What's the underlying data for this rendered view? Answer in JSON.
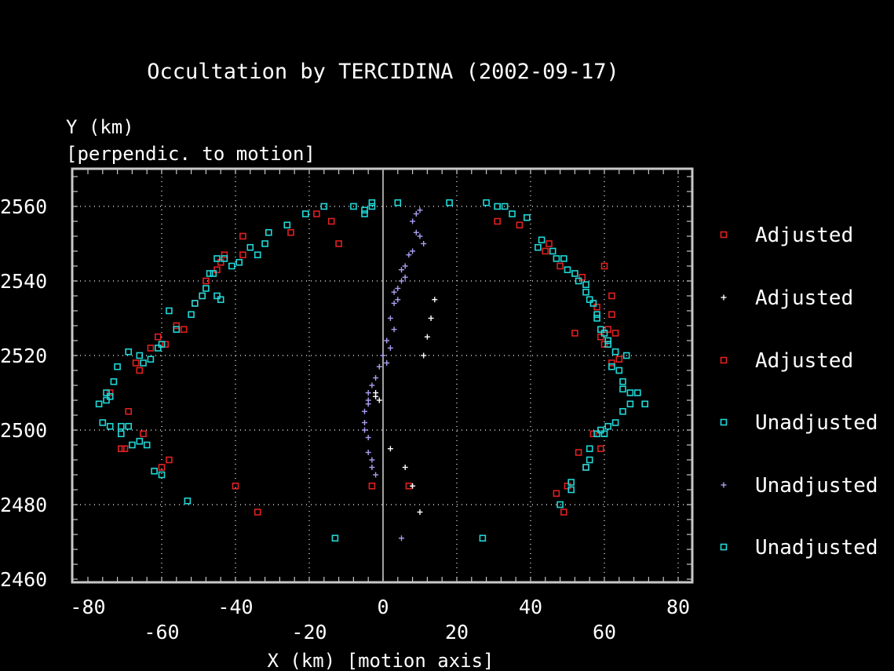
{
  "chart_data": {
    "type": "scatter",
    "title": "Occultation by TERCIDINA (2002-09-17)",
    "ylabel_line1": "Y (km)",
    "ylabel_line2": "[perpendic. to motion]",
    "xlabel": "X (km) [motion axis]",
    "xlim": [
      -84,
      84
    ],
    "ylim": [
      2460,
      2570
    ],
    "x_ticks_major": [
      -80,
      -40,
      0,
      40,
      80
    ],
    "x_ticks_minor": [
      -60,
      -20,
      20,
      60
    ],
    "x_grid": [
      -60,
      -40,
      -20,
      20,
      40,
      60,
      80
    ],
    "y_ticks": [
      2460,
      2480,
      2500,
      2520,
      2540,
      2560
    ],
    "y_grid": [
      2480,
      2500,
      2520,
      2540,
      2560
    ],
    "grid": true,
    "vertical_reference_x": 0,
    "legend_position": "right",
    "colors": {
      "background": "#000000",
      "frame": "#c8c8c8",
      "grid": "#ffffff",
      "text": "#ffffff",
      "red": "#e02020",
      "cyan": "#20d8d8",
      "lavender": "#a8a0f0"
    },
    "series": [
      {
        "name": "Adjusted",
        "marker": "square",
        "color": "#e02020",
        "points": [
          [
            -38,
            2547
          ],
          [
            -12,
            2550
          ],
          [
            -14,
            2556
          ],
          [
            -45,
            2543
          ],
          [
            -44,
            2545
          ],
          [
            -51,
            2534
          ],
          [
            -49,
            2536
          ],
          [
            -54,
            2527
          ],
          [
            -61,
            2525
          ],
          [
            -59,
            2523
          ],
          [
            -67,
            2518
          ],
          [
            -74,
            2510
          ],
          [
            -70,
            2495
          ],
          [
            -71,
            2495
          ],
          [
            -60,
            2490
          ],
          [
            -40,
            2485
          ],
          [
            -34,
            2478
          ],
          [
            -3,
            2485
          ],
          [
            7,
            2485
          ],
          [
            31,
            2556
          ],
          [
            45,
            2550
          ],
          [
            48,
            2544
          ],
          [
            60,
            2544
          ],
          [
            62,
            2536
          ],
          [
            62,
            2531
          ],
          [
            63,
            2526
          ],
          [
            52,
            2526
          ],
          [
            59,
            2525
          ],
          [
            60,
            2523
          ],
          [
            64,
            2519
          ],
          [
            59,
            2495
          ],
          [
            55,
            2490
          ],
          [
            50,
            2485
          ],
          [
            49,
            2478
          ]
        ]
      },
      {
        "name": "Adjusted",
        "marker": "plus",
        "color": "#ffffff",
        "points": [
          [
            -2,
            2510
          ],
          [
            -2,
            2509
          ],
          [
            -1,
            2508
          ],
          [
            2,
            2495
          ],
          [
            6,
            2490
          ],
          [
            8,
            2485
          ],
          [
            10,
            2478
          ],
          [
            11,
            2520
          ],
          [
            12,
            2525
          ],
          [
            13,
            2530
          ],
          [
            14,
            2535
          ]
        ]
      },
      {
        "name": "Adjusted",
        "marker": "square",
        "color": "#e02020",
        "points": [
          [
            -18,
            2558
          ],
          [
            -25,
            2553
          ],
          [
            -38,
            2552
          ],
          [
            -43,
            2547
          ],
          [
            -48,
            2540
          ],
          [
            -56,
            2528
          ],
          [
            -63,
            2522
          ],
          [
            -66,
            2516
          ],
          [
            -69,
            2505
          ],
          [
            -65,
            2499
          ],
          [
            -58,
            2492
          ],
          [
            37,
            2555
          ],
          [
            44,
            2548
          ],
          [
            54,
            2541
          ],
          [
            58,
            2533
          ],
          [
            61,
            2527
          ],
          [
            62,
            2518
          ],
          [
            57,
            2499
          ],
          [
            53,
            2494
          ],
          [
            47,
            2483
          ]
        ]
      },
      {
        "name": "Unadjusted",
        "marker": "square",
        "color": "#20d8d8",
        "points": [
          [
            -3,
            2560
          ],
          [
            -3,
            2561
          ],
          [
            -5,
            2559
          ],
          [
            -5,
            2558
          ],
          [
            -8,
            2560
          ],
          [
            -16,
            2560
          ],
          [
            -21,
            2558
          ],
          [
            -31,
            2553
          ],
          [
            -32,
            2550
          ],
          [
            -34,
            2547
          ],
          [
            -39,
            2545
          ],
          [
            -41,
            2544
          ],
          [
            -43,
            2546
          ],
          [
            -45,
            2546
          ],
          [
            -46,
            2542
          ],
          [
            -48,
            2538
          ],
          [
            -45,
            2536
          ],
          [
            -44,
            2535
          ],
          [
            -49,
            2536
          ],
          [
            -51,
            2534
          ],
          [
            -52,
            2531
          ],
          [
            -56,
            2527
          ],
          [
            -60,
            2523
          ],
          [
            -61,
            2522
          ],
          [
            -63,
            2519
          ],
          [
            -65,
            2518
          ],
          [
            -66,
            2520
          ],
          [
            -72,
            2517
          ],
          [
            -73,
            2513
          ],
          [
            -75,
            2510
          ],
          [
            -75,
            2508
          ],
          [
            -77,
            2507
          ],
          [
            -76,
            2502
          ],
          [
            -74,
            2501
          ],
          [
            -71,
            2501
          ],
          [
            -71,
            2499
          ],
          [
            -66,
            2497
          ],
          [
            -64,
            2496
          ],
          [
            -62,
            2489
          ],
          [
            -53,
            2481
          ],
          [
            -13,
            2471
          ],
          [
            4,
            2561
          ],
          [
            18,
            2561
          ],
          [
            28,
            2561
          ],
          [
            31,
            2560
          ],
          [
            33,
            2560
          ],
          [
            35,
            2558
          ],
          [
            43,
            2551
          ],
          [
            42,
            2549
          ],
          [
            46,
            2548
          ],
          [
            49,
            2546
          ],
          [
            50,
            2543
          ],
          [
            52,
            2542
          ],
          [
            53,
            2540
          ],
          [
            55,
            2537
          ],
          [
            56,
            2535
          ],
          [
            57,
            2534
          ],
          [
            58,
            2530
          ],
          [
            59,
            2527
          ],
          [
            60,
            2526
          ],
          [
            61,
            2523
          ],
          [
            63,
            2521
          ],
          [
            66,
            2520
          ],
          [
            62,
            2517
          ],
          [
            64,
            2516
          ],
          [
            65,
            2513
          ],
          [
            67,
            2510
          ],
          [
            69,
            2510
          ],
          [
            67,
            2507
          ],
          [
            71,
            2507
          ],
          [
            63,
            2502
          ],
          [
            61,
            2501
          ],
          [
            59,
            2500
          ],
          [
            58,
            2499
          ],
          [
            56,
            2495
          ],
          [
            55,
            2490
          ],
          [
            51,
            2484
          ],
          [
            48,
            2480
          ],
          [
            27,
            2471
          ]
        ]
      },
      {
        "name": "Unadjusted",
        "marker": "plus",
        "color": "#a8a0f0",
        "points": [
          [
            10,
            2559
          ],
          [
            9,
            2558
          ],
          [
            8,
            2556
          ],
          [
            9,
            2553
          ],
          [
            10,
            2552
          ],
          [
            11,
            2550
          ],
          [
            8,
            2548
          ],
          [
            7,
            2547
          ],
          [
            6,
            2544
          ],
          [
            5,
            2543
          ],
          [
            6,
            2541
          ],
          [
            5,
            2540
          ],
          [
            4,
            2538
          ],
          [
            3,
            2537
          ],
          [
            4,
            2535
          ],
          [
            3,
            2534
          ],
          [
            2,
            2530
          ],
          [
            3,
            2527
          ],
          [
            1,
            2524
          ],
          [
            2,
            2522
          ],
          [
            0,
            2520
          ],
          [
            1,
            2518
          ],
          [
            -1,
            2517
          ],
          [
            -2,
            2514
          ],
          [
            -3,
            2512
          ],
          [
            -4,
            2510
          ],
          [
            -4,
            2508
          ],
          [
            -4,
            2507
          ],
          [
            -5,
            2505
          ],
          [
            -5,
            2502
          ],
          [
            -5,
            2500
          ],
          [
            -4,
            2498
          ],
          [
            -4,
            2494
          ],
          [
            -3,
            2492
          ],
          [
            -3,
            2490
          ],
          [
            -2,
            2488
          ],
          [
            5,
            2471
          ]
        ]
      },
      {
        "name": "Unadjusted",
        "marker": "square",
        "color": "#20d8d8",
        "points": [
          [
            -26,
            2555
          ],
          [
            -36,
            2549
          ],
          [
            -47,
            2542
          ],
          [
            -58,
            2532
          ],
          [
            -69,
            2521
          ],
          [
            -74,
            2509
          ],
          [
            -69,
            2501
          ],
          [
            -68,
            2496
          ],
          [
            -60,
            2488
          ],
          [
            39,
            2557
          ],
          [
            47,
            2546
          ],
          [
            55,
            2539
          ],
          [
            58,
            2531
          ],
          [
            61,
            2524
          ],
          [
            65,
            2511
          ],
          [
            65,
            2505
          ],
          [
            60,
            2499
          ],
          [
            56,
            2492
          ],
          [
            51,
            2486
          ]
        ]
      }
    ],
    "legend": [
      {
        "label": "Adjusted",
        "marker": "square",
        "color": "#e02020"
      },
      {
        "label": "Adjusted",
        "marker": "plus",
        "color": "#ffffff"
      },
      {
        "label": "Adjusted",
        "marker": "square",
        "color": "#e02020"
      },
      {
        "label": "Unadjusted",
        "marker": "square",
        "color": "#20d8d8"
      },
      {
        "label": "Unadjusted",
        "marker": "plus",
        "color": "#a8a0f0"
      },
      {
        "label": "Unadjusted",
        "marker": "square",
        "color": "#20d8d8"
      }
    ]
  }
}
